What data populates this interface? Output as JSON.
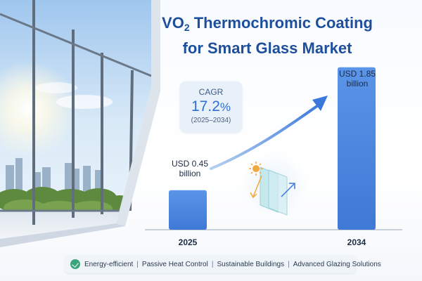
{
  "title": {
    "line1_main": "VO",
    "line1_sub": "2",
    "line1_rest": " Thermochromic Coating",
    "line2": "for Smart Glass Market"
  },
  "cagr": {
    "label": "CAGR",
    "value": "17.2",
    "unit": "%",
    "period": "(2025–2034)"
  },
  "chart_data": {
    "type": "bar",
    "categories": [
      "2025",
      "2034"
    ],
    "values": [
      0.45,
      1.85
    ],
    "value_labels": [
      [
        "USD 0.45",
        "billion"
      ],
      [
        "USD 1.85",
        "billion"
      ]
    ],
    "title": "",
    "xlabel": "",
    "ylabel": "",
    "ylim": [
      0,
      2.0
    ],
    "grid": false,
    "legend": "none",
    "bar_color": "#4a86e0"
  },
  "footer": {
    "items": [
      "Energy-efficient",
      "Passive Heat Control",
      "Sustainable Buildings",
      "Advanced Glazing Solutions"
    ],
    "separator": "|",
    "icon": "leaf-check-icon"
  },
  "colors": {
    "title": "#1e4f9c",
    "accent": "#2d6fd0",
    "bar": "#4a86e0"
  }
}
